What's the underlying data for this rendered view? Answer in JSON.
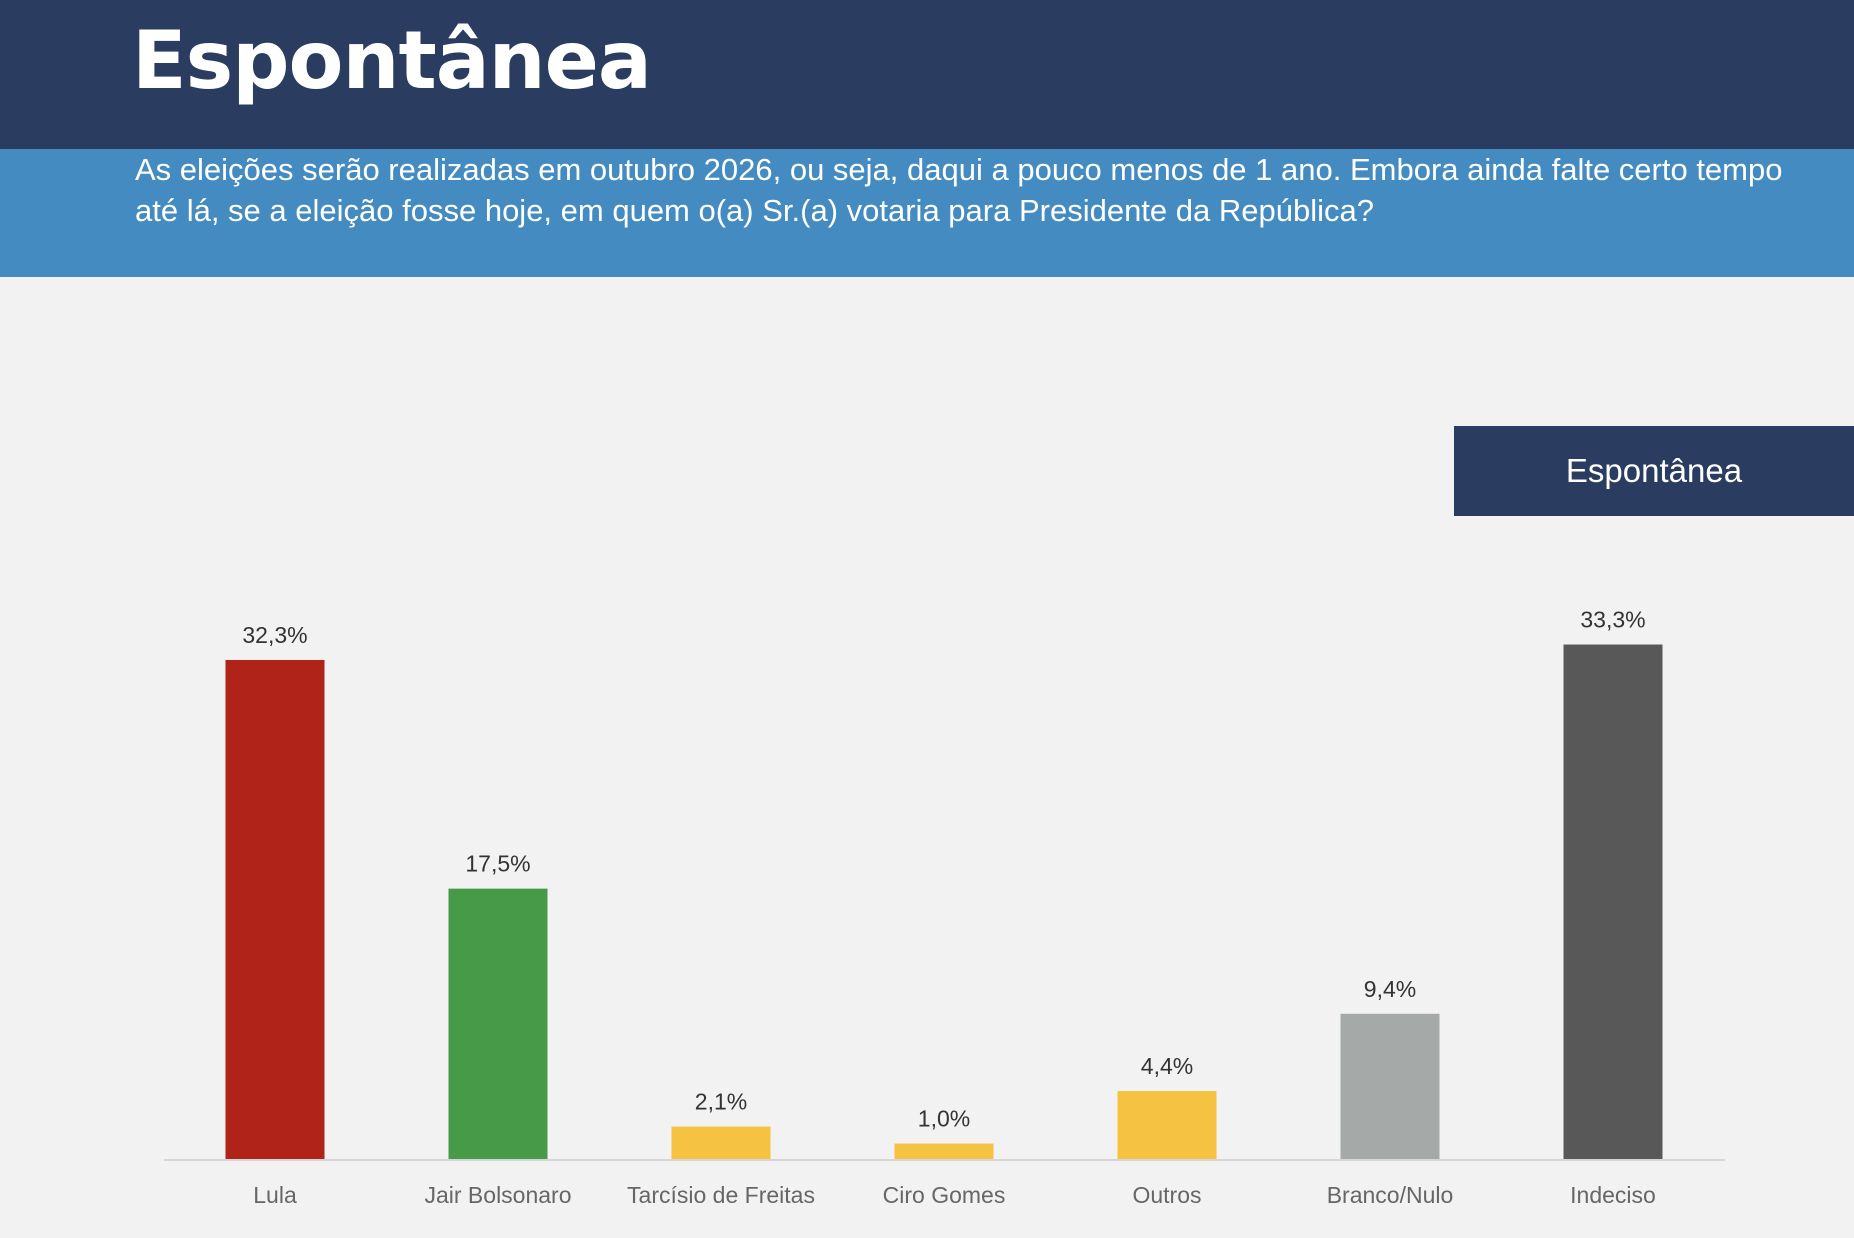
{
  "header": {
    "title": "Espontânea"
  },
  "question": "As eleições serão realizadas em outubro 2026, ou seja, daqui a pouco menos de 1 ano. Embora ainda falte certo tempo até lá, se a eleição fosse hoje, em quem o(a) Sr.(a) votaria para Presidente da República?",
  "chart_data": {
    "type": "bar",
    "title": "",
    "xlabel": "",
    "ylabel": "",
    "legend": {
      "label": "Espontânea",
      "placement": "top-right"
    },
    "categories": [
      "Lula",
      "Jair Bolsonaro",
      "Tarcísio de Freitas",
      "Ciro Gomes",
      "Outros",
      "Branco/Nulo",
      "Indeciso"
    ],
    "values": [
      32.3,
      17.5,
      2.1,
      1.0,
      4.4,
      9.4,
      33.3
    ],
    "value_labels": [
      "32,3%",
      "17,5%",
      "2,1%",
      "1,0%",
      "4,4%",
      "9,4%",
      "33,3%"
    ],
    "colors": [
      "#b02318",
      "#479a48",
      "#f5c242",
      "#f5c242",
      "#f5c242",
      "#a5a9a8",
      "#585858"
    ],
    "unit": "%",
    "grid": false,
    "ylim": [
      0,
      34
    ]
  }
}
